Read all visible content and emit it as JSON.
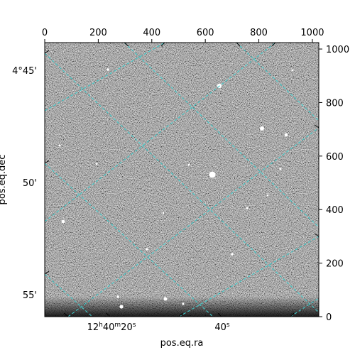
{
  "figure": {
    "xlabel": "pos.eq.ra",
    "ylabel": "pos.eq.dec",
    "grid_color": "#3fc9c9",
    "top_ticks": [
      "0",
      "200",
      "400",
      "600",
      "800",
      "1000"
    ],
    "right_ticks": [
      "0",
      "200",
      "400",
      "600",
      "800",
      "1000"
    ],
    "left_ticks": [
      "4°45'",
      "50'",
      "55'"
    ],
    "bottom_ticks": [
      {
        "label": "12h40m20s",
        "h": "12",
        "m": "40",
        "s": "20"
      },
      {
        "label": "40s",
        "h": "",
        "m": "",
        "s": "40"
      }
    ],
    "pixel_range": [
      0,
      1024
    ]
  }
}
